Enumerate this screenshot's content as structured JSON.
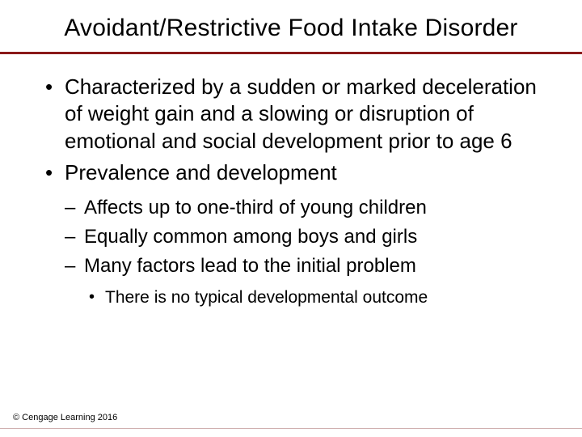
{
  "title": "Avoidant/Restrictive Food Intake Disorder",
  "rule_color": "#8a1a1a",
  "bullets": {
    "b1": "Characterized by a sudden or marked deceleration of weight gain and a slowing or disruption of emotional and social development prior to age 6",
    "b2": "Prevalence and development",
    "sub": {
      "s1": "Affects up to one-third of young children",
      "s2": "Equally common among boys and girls",
      "s3": "Many factors lead to the initial problem",
      "sub2": {
        "t1": "There is no typical developmental outcome"
      }
    }
  },
  "copyright": "© Cengage Learning 2016"
}
